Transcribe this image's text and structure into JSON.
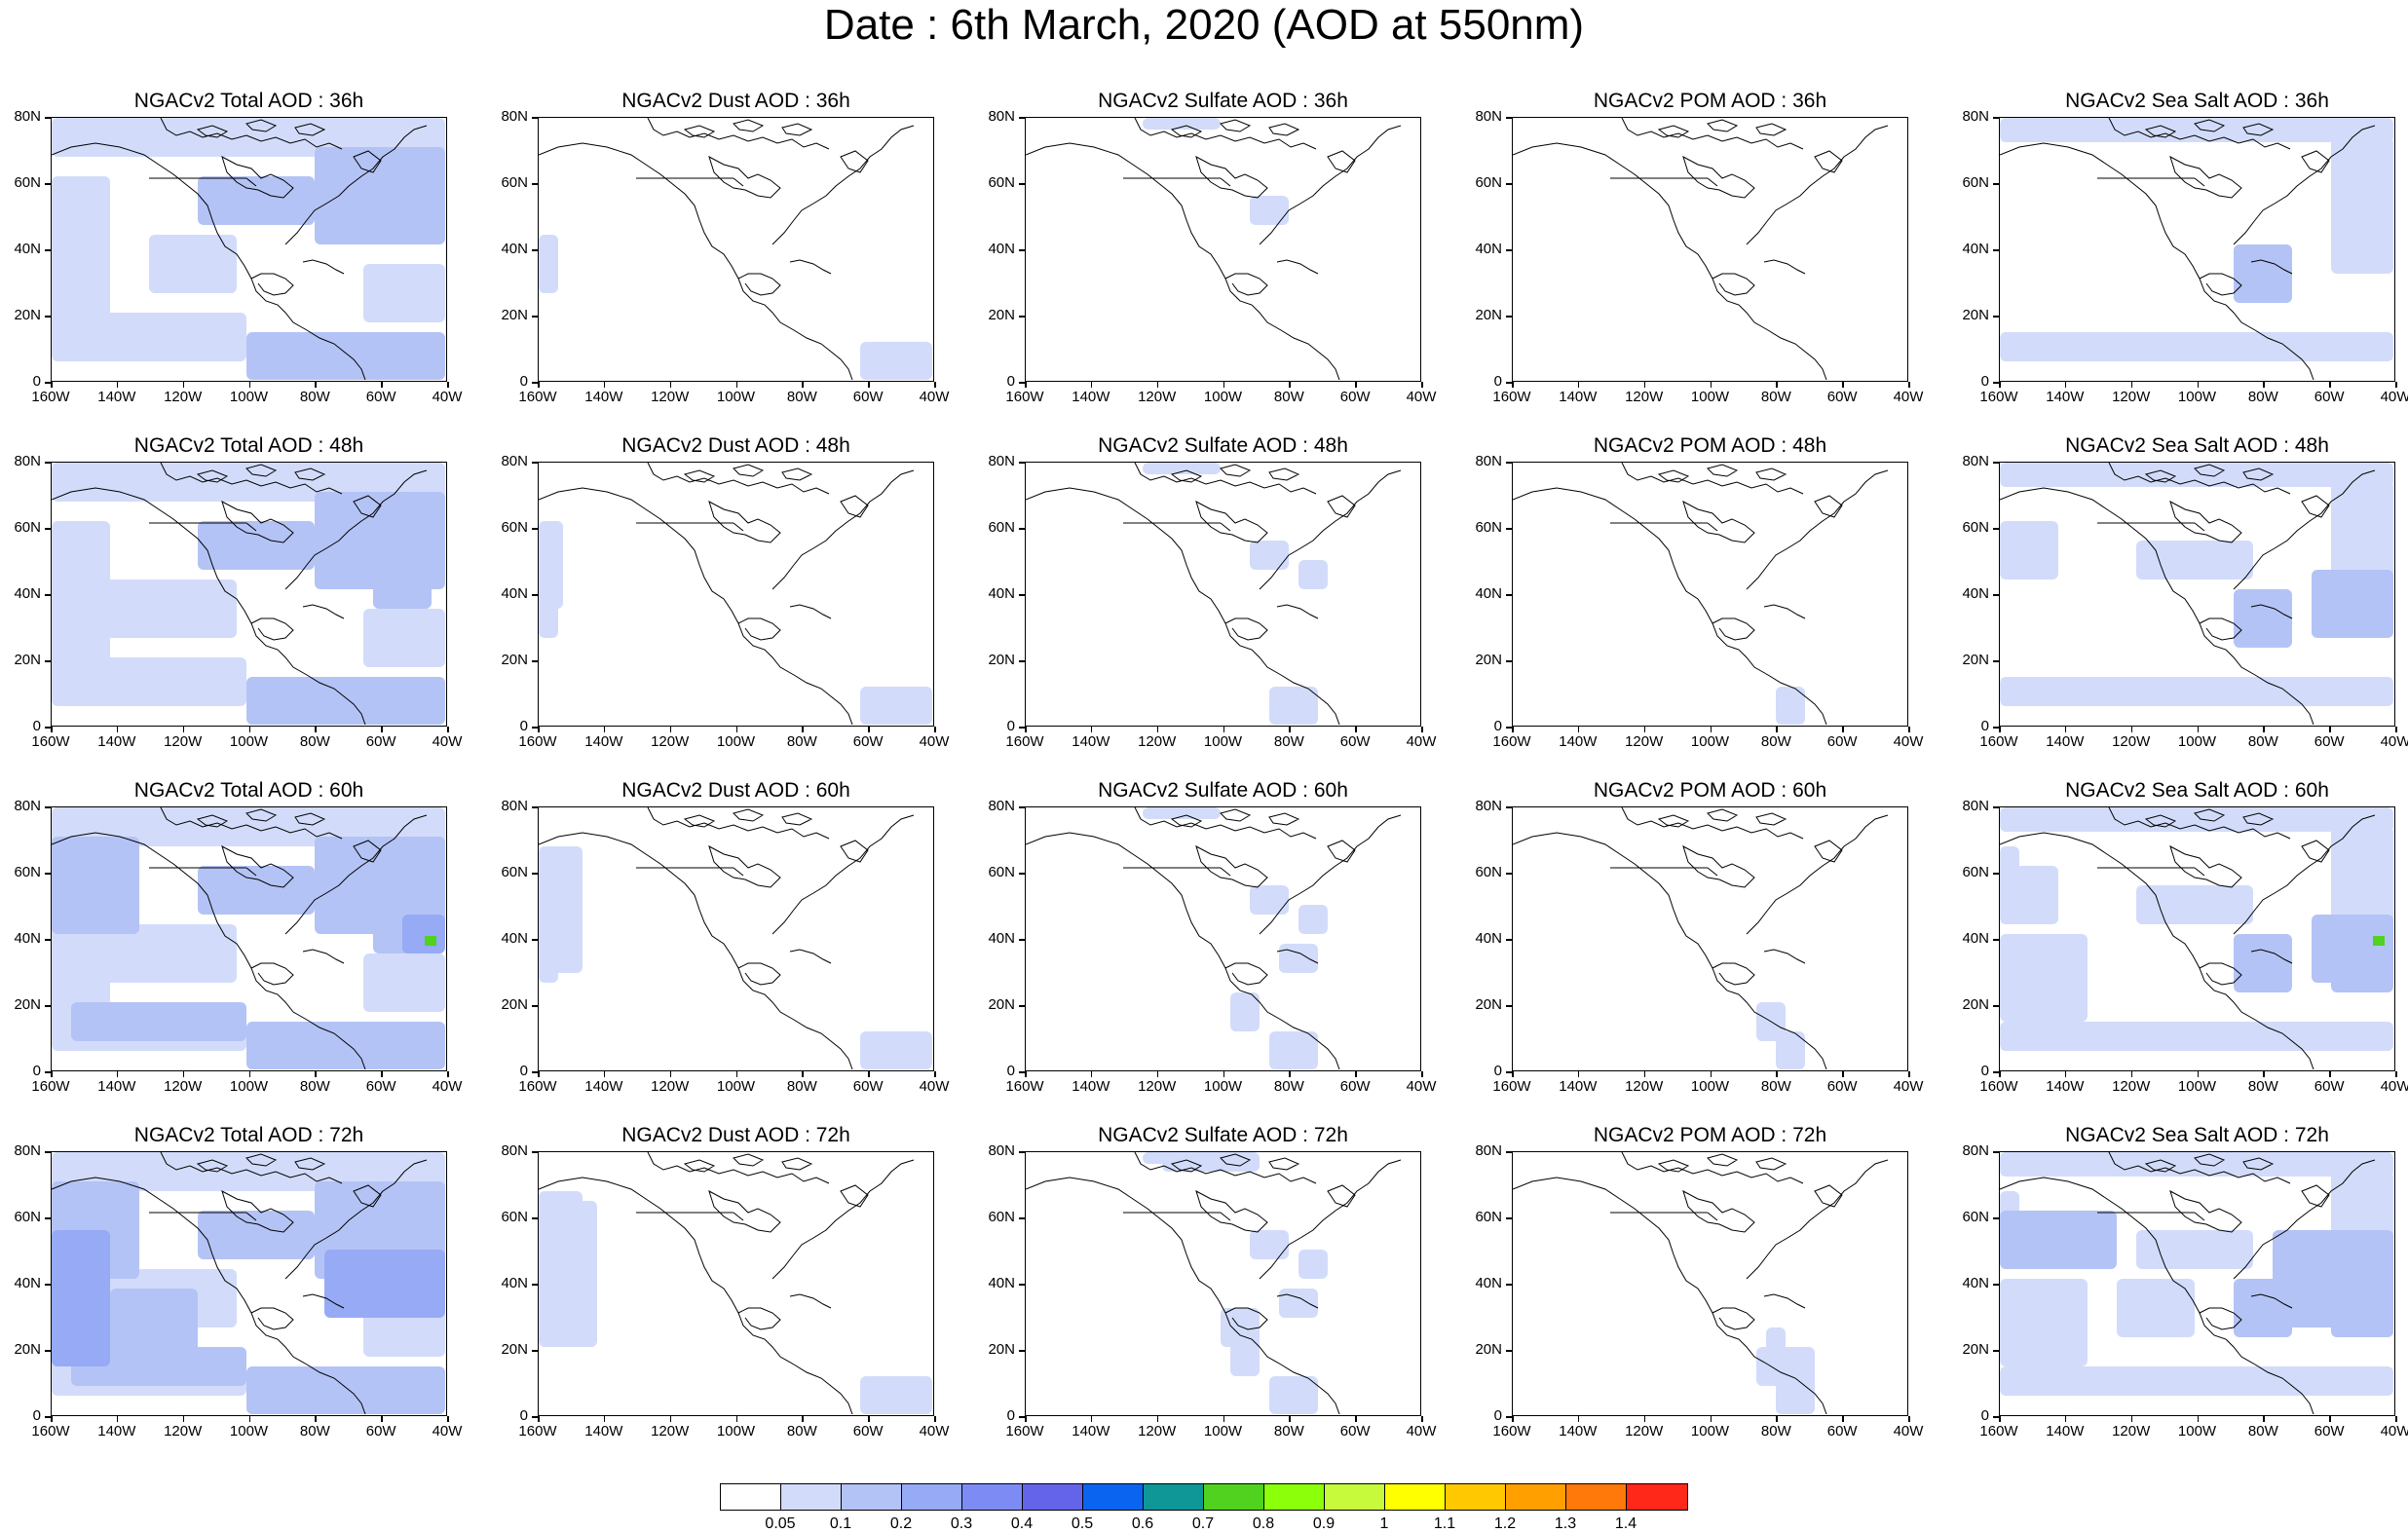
{
  "title": "Date : 6th March, 2020 (AOD at 550nm)",
  "axes": {
    "lat_labels": [
      "80N",
      "60N",
      "40N",
      "20N",
      "0"
    ],
    "lon_labels": [
      "160W",
      "140W",
      "120W",
      "100W",
      "80W",
      "60W",
      "40W"
    ],
    "lat_range": [
      0,
      80
    ],
    "lon_range": [
      -160,
      -40
    ]
  },
  "panels": [
    [
      "NGACv2 Total AOD : 36h",
      "NGACv2 Dust AOD : 36h",
      "NGACv2 Sulfate AOD : 36h",
      "NGACv2 POM AOD : 36h",
      "NGACv2 Sea Salt AOD : 36h"
    ],
    [
      "NGACv2 Total AOD : 48h",
      "NGACv2 Dust AOD : 48h",
      "NGACv2 Sulfate AOD : 48h",
      "NGACv2 POM AOD : 48h",
      "NGACv2 Sea Salt AOD : 48h"
    ],
    [
      "NGACv2 Total AOD : 60h",
      "NGACv2 Dust AOD : 60h",
      "NGACv2 Sulfate AOD : 60h",
      "NGACv2 POM AOD : 60h",
      "NGACv2 Sea Salt AOD : 60h"
    ],
    [
      "NGACv2 Total AOD : 72h",
      "NGACv2 Dust AOD : 72h",
      "NGACv2 Sulfate AOD : 72h",
      "NGACv2 POM AOD : 72h",
      "NGACv2 Sea Salt  AOD : 72h"
    ]
  ],
  "colorbar": {
    "labels": [
      "0.05",
      "0.1",
      "0.2",
      "0.3",
      "0.4",
      "0.5",
      "0.6",
      "0.7",
      "0.8",
      "0.9",
      "1",
      "1.1",
      "1.2",
      "1.3",
      "1.4"
    ],
    "colors": [
      "#ffffff",
      "#d2dcfa",
      "#b4c3f5",
      "#96aaf5",
      "#7d8cf5",
      "#6464eb",
      "#0a64f0",
      "#0f9696",
      "#50d21e",
      "#8cff0a",
      "#c8fa3c",
      "#ffff00",
      "#ffc800",
      "#ffa000",
      "#ff780a",
      "#ff2819"
    ]
  },
  "map_colors": {
    "land_outline": "#000000",
    "low_aod": "#d2dcfa",
    "mid_aod": "#b4c3f5",
    "high_aod": "#96aaf5",
    "peak": "#50d21e"
  }
}
